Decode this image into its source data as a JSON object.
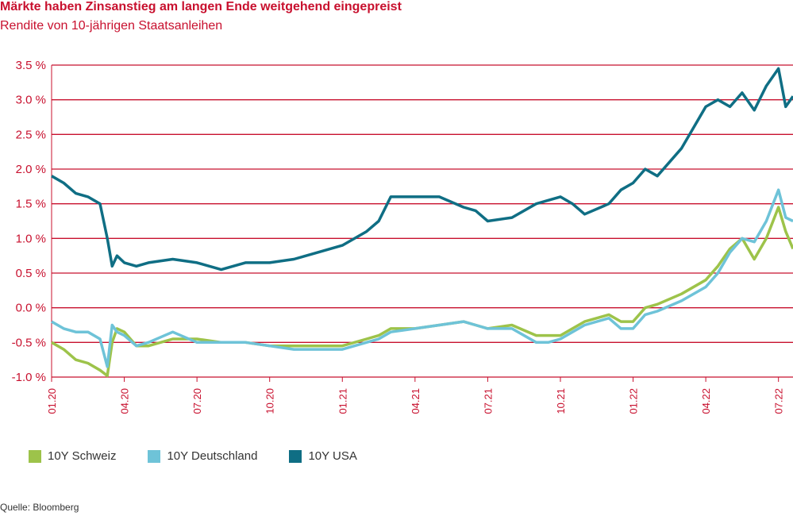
{
  "title": "Märkte haben Zinsanstieg am langen Ende weitgehend eingepreist",
  "subtitle": "Rendite von 10-jährigen Staatsanleihen",
  "source": "Quelle: Bloomberg",
  "colors": {
    "accent": "#c8102e",
    "schweiz": "#9dc34a",
    "deutschland": "#6ec3d8",
    "usa": "#0f6e84"
  },
  "chart_data": {
    "type": "line",
    "title": "Märkte haben Zinsanstieg am langen Ende weitgehend eingepreist",
    "subtitle": "Rendite von 10-jährigen Staatsanleihen",
    "xlabel": "",
    "ylabel": "",
    "ylim": [
      -1.0,
      3.5
    ],
    "yticks": [
      "-1.0 %",
      "-0.5 %",
      "0.0 %",
      "0.5 %",
      "1.0 %",
      "1.5 %",
      "2.0 %",
      "2.5 %",
      "3.0 %",
      "3.5 %"
    ],
    "ytick_values": [
      -1.0,
      -0.5,
      0.0,
      0.5,
      1.0,
      1.5,
      2.0,
      2.5,
      3.0,
      3.5
    ],
    "xtick_labels": [
      "01.20",
      "04.20",
      "07.20",
      "10.20",
      "01.21",
      "04.21",
      "07.21",
      "10.21",
      "01.22",
      "04.22",
      "07.22"
    ],
    "x": [
      0,
      0.5,
      1,
      1.5,
      2,
      2.3,
      2.5,
      2.7,
      3,
      3.5,
      4,
      5,
      6,
      7,
      8,
      9,
      10,
      11,
      12,
      13,
      13.5,
      14,
      15,
      16,
      17,
      17.5,
      18,
      19,
      20,
      20.5,
      21,
      21.5,
      22,
      23,
      23.5,
      24,
      24.5,
      25,
      26,
      27,
      27.5,
      28,
      28.5,
      29,
      29.5,
      30,
      30.3,
      30.6
    ],
    "x_unit": "months since 01.20",
    "series": [
      {
        "name": "10Y Schweiz",
        "values": [
          -0.5,
          -0.6,
          -0.75,
          -0.8,
          -0.9,
          -0.98,
          -0.5,
          -0.3,
          -0.35,
          -0.55,
          -0.55,
          -0.45,
          -0.45,
          -0.5,
          -0.5,
          -0.55,
          -0.55,
          -0.55,
          -0.55,
          -0.45,
          -0.4,
          -0.3,
          -0.3,
          -0.25,
          -0.2,
          -0.25,
          -0.3,
          -0.25,
          -0.4,
          -0.4,
          -0.4,
          -0.3,
          -0.2,
          -0.1,
          -0.2,
          -0.2,
          0.0,
          0.05,
          0.2,
          0.4,
          0.6,
          0.85,
          1.0,
          0.7,
          1.0,
          1.45,
          1.1,
          0.85
        ]
      },
      {
        "name": "10Y Deutschland",
        "values": [
          -0.2,
          -0.3,
          -0.35,
          -0.35,
          -0.45,
          -0.85,
          -0.25,
          -0.35,
          -0.4,
          -0.55,
          -0.5,
          -0.35,
          -0.5,
          -0.5,
          -0.5,
          -0.55,
          -0.6,
          -0.6,
          -0.6,
          -0.5,
          -0.45,
          -0.35,
          -0.3,
          -0.25,
          -0.2,
          -0.25,
          -0.3,
          -0.3,
          -0.5,
          -0.5,
          -0.45,
          -0.35,
          -0.25,
          -0.15,
          -0.3,
          -0.3,
          -0.1,
          -0.05,
          0.1,
          0.3,
          0.5,
          0.8,
          1.0,
          0.95,
          1.25,
          1.7,
          1.3,
          1.25
        ]
      },
      {
        "name": "10Y USA",
        "values": [
          1.9,
          1.8,
          1.65,
          1.6,
          1.5,
          1.0,
          0.6,
          0.75,
          0.65,
          0.6,
          0.65,
          0.7,
          0.65,
          0.55,
          0.65,
          0.65,
          0.7,
          0.8,
          0.9,
          1.1,
          1.25,
          1.6,
          1.6,
          1.6,
          1.45,
          1.4,
          1.25,
          1.3,
          1.5,
          1.55,
          1.6,
          1.5,
          1.35,
          1.5,
          1.7,
          1.8,
          2.0,
          1.9,
          2.3,
          2.9,
          3.0,
          2.9,
          3.1,
          2.85,
          3.2,
          3.45,
          2.9,
          3.05
        ]
      }
    ],
    "grid": true,
    "legend": "bottom"
  }
}
